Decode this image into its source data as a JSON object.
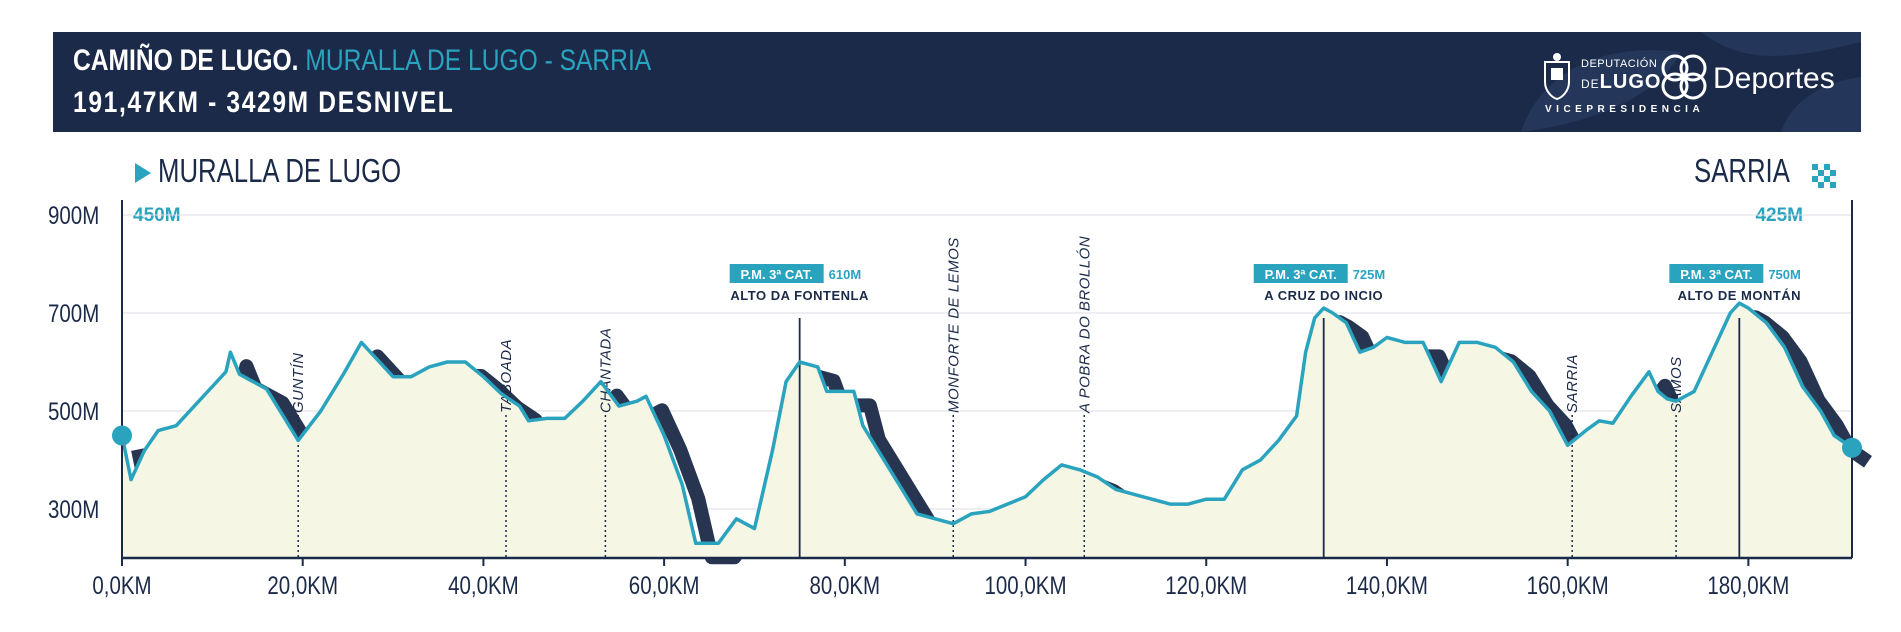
{
  "header": {
    "title_main": "CAMIÑO DE LUGO.",
    "title_route": "MURALLA DE LUGO - SARRIA",
    "subtitle": "191,47KM - 3429M DESNIVEL",
    "logo": {
      "line1": "DEPUTACIÓN",
      "line2_a": "DE",
      "line2_b": "LUGO",
      "brand": "Deportes",
      "vice": "VICEPRESIDENCIA"
    }
  },
  "start": {
    "name": "MURALLA DE LUGO",
    "elevation": "450M"
  },
  "end": {
    "name": "SARRIA",
    "elevation": "425M"
  },
  "colors": {
    "navy": "#1b2a48",
    "teal": "#2aa3bf",
    "fill": "#f5f6e4"
  },
  "chart_data": {
    "type": "area",
    "x_range": [
      0,
      191.47
    ],
    "y_range": [
      200,
      1050
    ],
    "x_ticks": [
      0,
      20,
      40,
      60,
      80,
      100,
      120,
      140,
      160,
      180
    ],
    "x_tick_labels": [
      "0,0KM",
      "20,0KM",
      "40,0KM",
      "60,0KM",
      "80,0KM",
      "100,0KM",
      "120,0KM",
      "140,0KM",
      "160,0KM",
      "180,0KM"
    ],
    "y_ticks": [
      300,
      500,
      700,
      900
    ],
    "y_tick_labels": [
      "300M",
      "500M",
      "700M",
      "900M"
    ],
    "profile": [
      [
        0,
        450
      ],
      [
        1,
        360
      ],
      [
        2.5,
        420
      ],
      [
        4,
        460
      ],
      [
        6,
        470
      ],
      [
        8,
        510
      ],
      [
        10,
        550
      ],
      [
        11.5,
        580
      ],
      [
        12,
        620
      ],
      [
        13,
        575
      ],
      [
        14.5,
        560
      ],
      [
        16,
        545
      ],
      [
        17.5,
        500
      ],
      [
        19.5,
        440
      ],
      [
        22,
        500
      ],
      [
        24.5,
        575
      ],
      [
        26.5,
        640
      ],
      [
        28,
        610
      ],
      [
        30,
        570
      ],
      [
        32,
        570
      ],
      [
        34,
        590
      ],
      [
        36,
        600
      ],
      [
        38,
        600
      ],
      [
        40,
        570
      ],
      [
        42,
        535
      ],
      [
        44,
        510
      ],
      [
        45,
        480
      ],
      [
        47,
        485
      ],
      [
        49,
        485
      ],
      [
        51,
        520
      ],
      [
        53,
        560
      ],
      [
        55,
        510
      ],
      [
        57,
        520
      ],
      [
        58,
        530
      ],
      [
        60,
        450
      ],
      [
        62,
        350
      ],
      [
        63.5,
        230
      ],
      [
        66,
        230
      ],
      [
        68,
        280
      ],
      [
        70,
        260
      ],
      [
        72,
        420
      ],
      [
        73.5,
        560
      ],
      [
        75,
        600
      ],
      [
        77,
        590
      ],
      [
        78,
        540
      ],
      [
        79.5,
        540
      ],
      [
        81,
        540
      ],
      [
        82,
        470
      ],
      [
        84,
        410
      ],
      [
        86,
        350
      ],
      [
        88,
        290
      ],
      [
        90,
        280
      ],
      [
        92,
        270
      ],
      [
        93,
        280
      ],
      [
        94,
        290
      ],
      [
        96,
        295
      ],
      [
        98,
        310
      ],
      [
        100,
        325
      ],
      [
        102,
        360
      ],
      [
        104,
        390
      ],
      [
        106,
        380
      ],
      [
        108,
        365
      ],
      [
        110,
        340
      ],
      [
        112,
        330
      ],
      [
        114,
        320
      ],
      [
        116,
        310
      ],
      [
        118,
        310
      ],
      [
        120,
        320
      ],
      [
        122,
        320
      ],
      [
        124,
        380
      ],
      [
        126,
        400
      ],
      [
        128,
        440
      ],
      [
        130,
        490
      ],
      [
        131,
        620
      ],
      [
        132,
        690
      ],
      [
        133,
        710
      ],
      [
        134,
        700
      ],
      [
        135.5,
        680
      ],
      [
        137,
        620
      ],
      [
        138.5,
        630
      ],
      [
        140,
        650
      ],
      [
        142,
        640
      ],
      [
        144,
        640
      ],
      [
        146,
        560
      ],
      [
        148,
        640
      ],
      [
        150,
        640
      ],
      [
        152,
        630
      ],
      [
        154,
        600
      ],
      [
        156,
        540
      ],
      [
        158,
        500
      ],
      [
        160,
        430
      ],
      [
        162,
        460
      ],
      [
        163.5,
        480
      ],
      [
        165,
        475
      ],
      [
        167,
        530
      ],
      [
        169,
        580
      ],
      [
        170,
        540
      ],
      [
        171,
        525
      ],
      [
        172,
        520
      ],
      [
        174,
        540
      ],
      [
        176,
        620
      ],
      [
        178,
        700
      ],
      [
        179,
        720
      ],
      [
        180,
        710
      ],
      [
        182,
        680
      ],
      [
        184,
        630
      ],
      [
        186,
        550
      ],
      [
        188,
        500
      ],
      [
        189.5,
        450
      ],
      [
        191.47,
        425
      ]
    ],
    "towns": [
      {
        "km": 19.5,
        "name": "GUNTÍN"
      },
      {
        "km": 42.5,
        "name": "TABOADA"
      },
      {
        "km": 53.5,
        "name": "CHANTADA"
      },
      {
        "km": 92,
        "name": "MONFORTE DE LEMOS"
      },
      {
        "km": 106.5,
        "name": "A POBRA DO BROLLÓN"
      },
      {
        "km": 160.5,
        "name": "SARRIA"
      },
      {
        "km": 172,
        "name": "SAMOS"
      }
    ],
    "climbs": [
      {
        "km": 75,
        "category": "P.M. 3ª CAT.",
        "altitude": "610M",
        "name": "ALTO DA FONTENLA"
      },
      {
        "km": 133,
        "category": "P.M. 3ª CAT.",
        "altitude": "725M",
        "name": "A CRUZ DO INCIO"
      },
      {
        "km": 179,
        "category": "P.M. 3ª CAT.",
        "altitude": "750M",
        "name": "ALTO DE MONTÁN"
      }
    ]
  }
}
